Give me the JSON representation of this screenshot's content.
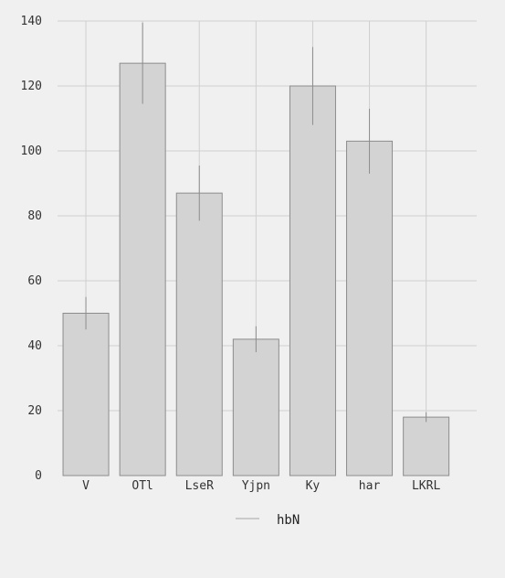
{
  "chart_data": {
    "type": "bar",
    "categories": [
      "V",
      "OTl",
      "LseR",
      "Yjpn",
      "Ky",
      "har",
      "LKRL"
    ],
    "series": [
      {
        "name": "hbN",
        "values": [
          50,
          127,
          87,
          42,
          120,
          103,
          18
        ],
        "error_low": [
          45,
          114.5,
          78.5,
          38,
          108,
          93,
          16.5
        ],
        "error_high": [
          55,
          139.5,
          95.5,
          46,
          132,
          113,
          19.5
        ]
      }
    ],
    "title": "",
    "xlabel": "",
    "ylabel": "",
    "ylim": [
      0,
      140
    ],
    "yticks": [
      "0",
      "20",
      "40",
      "60",
      "80",
      "100",
      "120",
      "140"
    ],
    "grid": true,
    "legend_position": "bottom-center",
    "colors": {
      "bar_fill": "#d3d3d3",
      "bar_stroke": "#8c8c8c",
      "error_bar": "#8c8c8c",
      "grid": "#cfcfcf",
      "background": "#f0f0f0"
    }
  }
}
